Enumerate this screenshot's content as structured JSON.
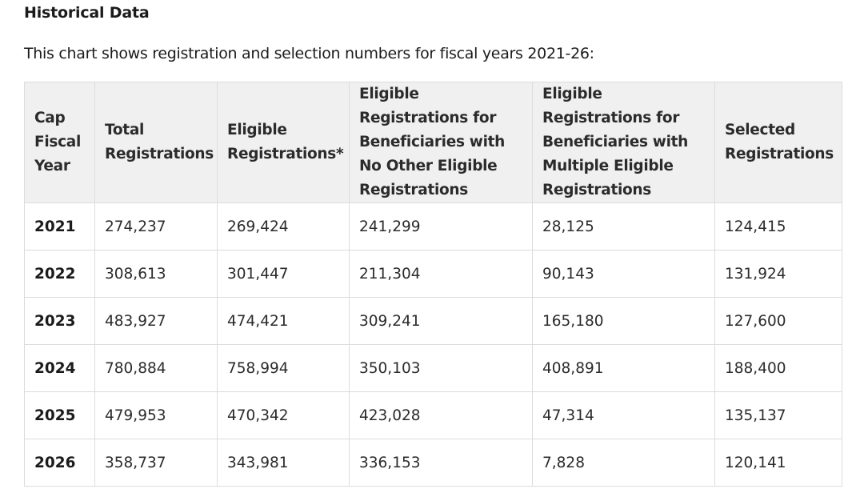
{
  "heading": "Historical Data",
  "intro": "This chart shows registration and selection numbers for fiscal years 2021-26:",
  "table": {
    "columns": [
      "Cap Fiscal Year",
      "Total Registrations",
      "Eligible Registrations*",
      "Eligible Registrations for Beneficiaries with No Other Eligible Registrations",
      "Eligible Registrations for Beneficiaries with Multiple Eligible Registrations",
      "Selected Registrations"
    ],
    "rows": [
      [
        "2021",
        "274,237",
        "269,424",
        "241,299",
        "28,125",
        "124,415"
      ],
      [
        "2022",
        "308,613",
        "301,447",
        "211,304",
        "90,143",
        "131,924"
      ],
      [
        "2023",
        "483,927",
        "474,421",
        "309,241",
        "165,180",
        "127,600"
      ],
      [
        "2024",
        "780,884",
        "758,994",
        "350,103",
        "408,891",
        "188,400"
      ],
      [
        "2025",
        "479,953",
        "470,342",
        "423,028",
        "47,314",
        "135,137"
      ],
      [
        "2026",
        "358,737",
        "343,981",
        "336,153",
        "7,828",
        "120,141"
      ]
    ]
  }
}
